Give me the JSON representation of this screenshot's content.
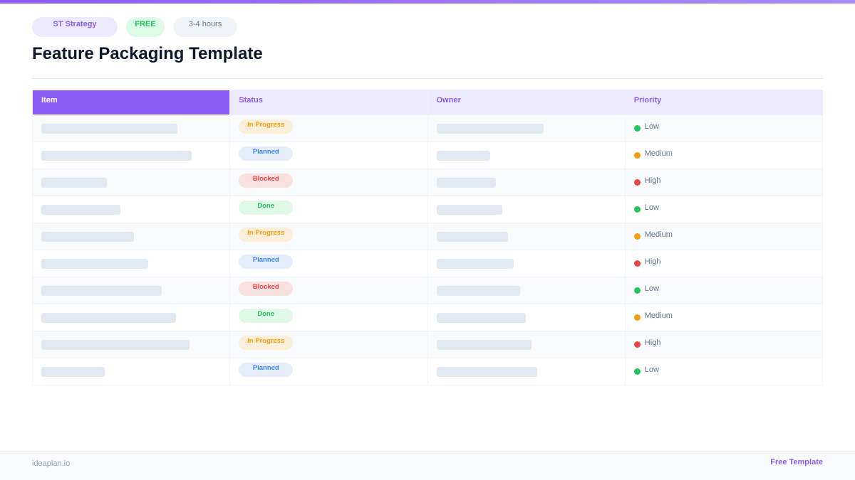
{
  "tags": {
    "category": "ST  Strategy",
    "price": "FREE",
    "duration": "3-4 hours"
  },
  "title": "Feature Packaging Template",
  "table": {
    "headers": [
      "Item",
      "Status",
      "Owner",
      "Priority"
    ],
    "rows": [
      {
        "status": "In Progress",
        "priority": "Low"
      },
      {
        "status": "Planned",
        "priority": "Medium"
      },
      {
        "status": "Blocked",
        "priority": "High"
      },
      {
        "status": "Done",
        "priority": "Low"
      },
      {
        "status": "In Progress",
        "priority": "Medium"
      },
      {
        "status": "Planned",
        "priority": "High"
      },
      {
        "status": "Blocked",
        "priority": "Low"
      },
      {
        "status": "Done",
        "priority": "Medium"
      },
      {
        "status": "In Progress",
        "priority": "High"
      },
      {
        "status": "Planned",
        "priority": "Low"
      }
    ]
  },
  "status_colors": {
    "In Progress": {
      "fg": "#f59e0b",
      "bg": "#fbefd9"
    },
    "Planned": {
      "fg": "#3b82f6",
      "bg": "#e5edfc"
    },
    "Blocked": {
      "fg": "#ef4444",
      "bg": "#f9e1e1"
    },
    "Done": {
      "fg": "#22c55e",
      "bg": "#e0f8e8"
    }
  },
  "priority_colors": {
    "Low": "#22c55e",
    "Medium": "#f59e0b",
    "High": "#ef4444"
  },
  "footer": {
    "site": "ideaplan.io",
    "label": "Free Template"
  }
}
